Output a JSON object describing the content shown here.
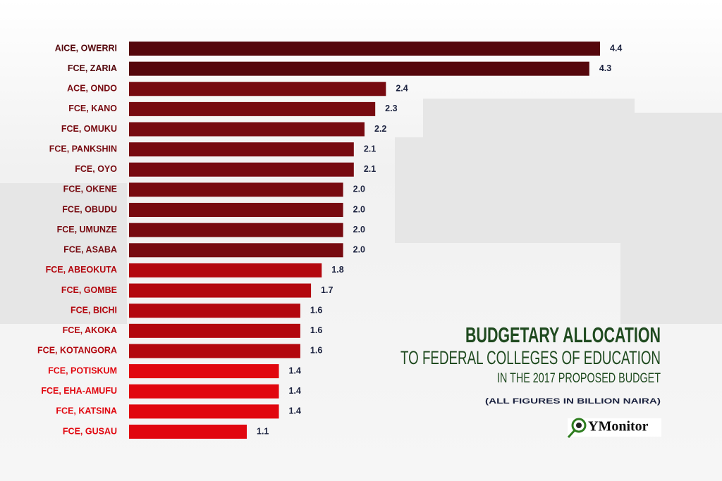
{
  "chart_data": {
    "type": "bar",
    "orientation": "horizontal",
    "title": "BUDGETARY ALLOCATION",
    "subtitle": [
      "TO FEDERAL COLLEGES OF EDUCATION",
      "IN THE 2017 PROPOSED BUDGET"
    ],
    "note": "(ALL FIGURES IN BILLION NAIRA)",
    "logo": "YMonitor",
    "categories": [
      "AICE,  OWERRI",
      "FCE, ZARIA",
      "ACE, ONDO",
      "FCE, KANO",
      "FCE, OMUKU",
      "FCE, PANKSHIN",
      "FCE, OYO",
      "FCE, OKENE",
      "FCE, OBUDU",
      "FCE, UMUNZE",
      "FCE, ASABA",
      "FCE, ABEOKUTA",
      "FCE, GOMBE",
      "FCE, BICHI",
      "FCE, AKOKA",
      "FCE, KOTANGORA",
      "FCE, POTISKUM",
      "FCE, EHA-AMUFU",
      "FCE, KATSINA",
      "FCE, GUSAU"
    ],
    "values": [
      4.4,
      4.3,
      2.4,
      2.3,
      2.2,
      2.1,
      2.1,
      2,
      2,
      2,
      2,
      1.8,
      1.7,
      1.6,
      1.6,
      1.6,
      1.4,
      1.4,
      1.4,
      1.1
    ],
    "value_labels": [
      "4.4",
      "4.3",
      "2.4",
      "2.3",
      "2.2",
      "2.1",
      "2.1",
      "2.0",
      "2.0",
      "2.0",
      "2.0",
      "1.8",
      "1.7",
      "1.6",
      "1.6",
      "1.6",
      "1.4",
      "1.4",
      "1.4",
      "1.1"
    ],
    "colors": [
      "#55070c",
      "#55070c",
      "#770a10",
      "#770a10",
      "#770a10",
      "#770a10",
      "#770a10",
      "#770a10",
      "#770a10",
      "#770a10",
      "#770a10",
      "#b3070e",
      "#b3070e",
      "#b3070e",
      "#b3070e",
      "#b3070e",
      "#e1070f",
      "#e1070f",
      "#e1070f",
      "#e1070f"
    ]
  }
}
